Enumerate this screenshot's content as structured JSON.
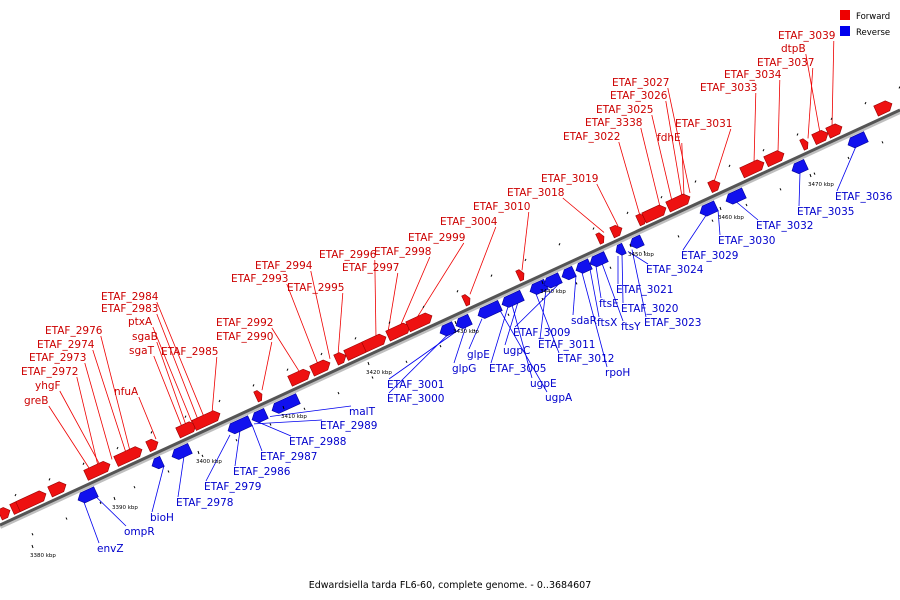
{
  "caption": "Edwardsiella tarda FL6-60, complete genome. - 0..3684607",
  "legend": [
    {
      "label": "Forward",
      "color": "#ee0000"
    },
    {
      "label": "Reverse",
      "color": "#0000ee"
    }
  ],
  "kbp_labels": [
    "3380 kbp",
    "3390 kbp",
    "3400 kbp",
    "3410 kbp",
    "3420 kbp",
    "3430 kbp",
    "3440 kbp",
    "3450 kbp",
    "3460 kbp",
    "3470 kbp"
  ],
  "forward_labels": [
    "ETAF_3039",
    "dtpB",
    "ETAF_3037",
    "ETAF_3034",
    "ETAF_3033",
    "ETAF_3027",
    "ETAF_3026",
    "ETAF_3025",
    "ETAF_3338",
    "fdhE",
    "ETAF_3031",
    "ETAF_3022",
    "ETAF_3019",
    "ETAF_3018",
    "ETAF_3010",
    "ETAF_3004",
    "ETAF_2999",
    "ETAF_2998",
    "ETAF_2996",
    "ETAF_2997",
    "ETAF_2994",
    "ETAF_2993",
    "ETAF_2995",
    "ETAF_2984",
    "ETAF_2983",
    "ptxA",
    "sgaB",
    "sgaT",
    "ETAF_2985",
    "ETAF_2992",
    "ETAF_2990",
    "ETAF_2976",
    "ETAF_2974",
    "ETAF_2973",
    "ETAF_2972",
    "nfuA",
    "yhgF",
    "greB"
  ],
  "reverse_labels": [
    "ETAF_3036",
    "ETAF_3035",
    "ETAF_3032",
    "ETAF_3030",
    "ETAF_3029",
    "ETAF_3024",
    "ETAF_3021",
    "ETAF_3020",
    "ETAF_3023",
    "ftsE",
    "ftsX",
    "ftsY",
    "sdaR",
    "rpoH",
    "ETAF_3009",
    "ETAF_3011",
    "ETAF_3012",
    "ugpC",
    "ETAF_3005",
    "ugpE",
    "ugpA",
    "glpE",
    "glpG",
    "ETAF_3001",
    "ETAF_3000",
    "malT",
    "ETAF_2989",
    "ETAF_2988",
    "ETAF_2987",
    "ETAF_2986",
    "ETAF_2979",
    "ETAF_2978",
    "bioH",
    "ompR",
    "envZ"
  ]
}
